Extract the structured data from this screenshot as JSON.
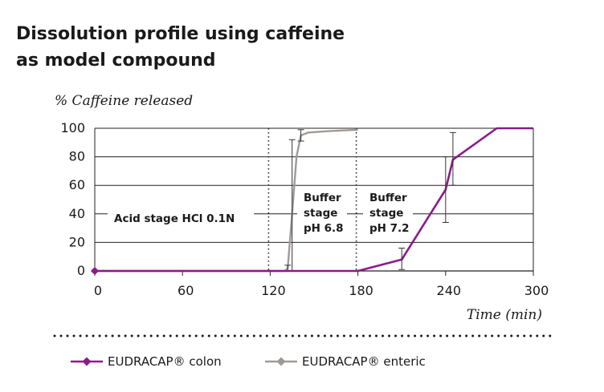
{
  "title_lines": [
    "Dissolution profile using caffeine",
    "as model compound"
  ],
  "chart_data": {
    "type": "line",
    "ylabel": "% Caffeine released",
    "xlabel": "Time (min)",
    "xlim": [
      0,
      300
    ],
    "ylim": [
      0,
      100
    ],
    "xticks": [
      "0",
      "60",
      "120",
      "180",
      "240",
      "300"
    ],
    "yticks": [
      "0",
      "20",
      "40",
      "60",
      "80",
      "100"
    ],
    "grid": "horizontal",
    "legend_position": "bottom",
    "stage_boundaries": [
      120,
      180
    ],
    "stage_labels": [
      {
        "lines": [
          "Acid stage HCl 0.1N"
        ]
      },
      {
        "lines": [
          "Buffer",
          "stage",
          "pH 6.8"
        ]
      },
      {
        "lines": [
          "Buffer",
          "stage",
          "pH 7.2"
        ]
      }
    ],
    "series": [
      {
        "name": "EUDRACAP® colon",
        "color": "#8b1a8b",
        "marker": "diamond",
        "x": [
          0,
          180,
          210,
          240,
          245,
          275,
          300
        ],
        "y": [
          0,
          0,
          8,
          57,
          78,
          100,
          100
        ],
        "errors": [
          {
            "x": 210,
            "low": 1,
            "high": 16
          },
          {
            "x": 240,
            "low": 34,
            "high": 80
          },
          {
            "x": 245,
            "low": 60,
            "high": 97
          }
        ]
      },
      {
        "name": "EUDRACAP® enteric",
        "color": "#a09a96",
        "marker": "diamond",
        "x": [
          0,
          130,
          132,
          135,
          138,
          141,
          146,
          160,
          180
        ],
        "y": [
          0,
          0,
          2,
          40,
          80,
          95,
          97,
          98,
          99
        ],
        "errors": [
          {
            "x": 132,
            "low": 0,
            "high": 4
          },
          {
            "x": 135,
            "low": 0,
            "high": 92
          },
          {
            "x": 141,
            "low": 91,
            "high": 99
          }
        ]
      }
    ]
  }
}
